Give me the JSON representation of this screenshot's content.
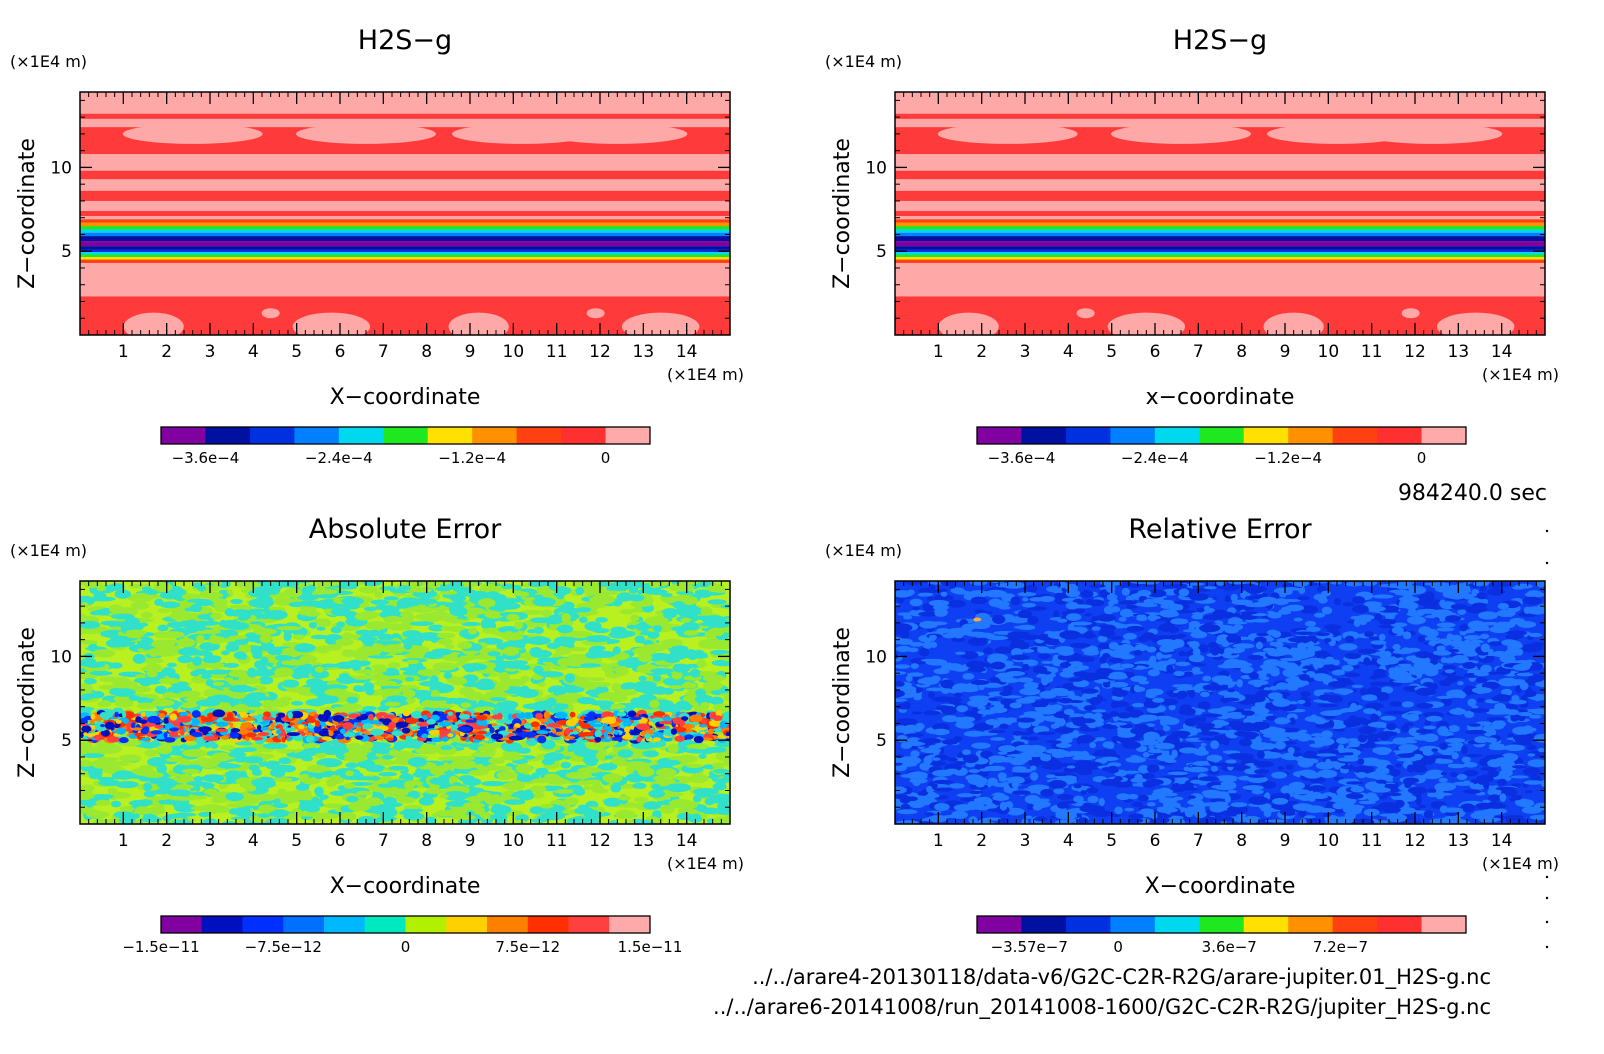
{
  "figure": {
    "time_label": "984240.0 sec",
    "sources": [
      "../../arare4-20130118/data-v6/G2C-C2R-R2G/arare-jupiter.01_H2S-g.nc",
      "../../arare6-20141008/run_20141008-1600/G2C-C2R-R2G/jupiter_H2S-g.nc"
    ]
  },
  "chart_data": [
    {
      "type": "heatmap",
      "title": "H2S−g",
      "xlabel": "X−coordinate",
      "ylabel": "Z−coordinate",
      "x_unit": "(×1E4 m)",
      "y_unit": "(×1E4 m)",
      "xlim": [
        0,
        15
      ],
      "ylim": [
        0,
        14.5
      ],
      "xticks": [
        "1",
        "2",
        "3",
        "4",
        "5",
        "6",
        "7",
        "8",
        "9",
        "10",
        "11",
        "12",
        "13",
        "14"
      ],
      "yticks": [
        "5",
        "10"
      ],
      "pattern": "bands",
      "colorbar": {
        "colors": [
          "#8000a0",
          "#0010a0",
          "#0030e0",
          "#0080ff",
          "#00d8f0",
          "#20e820",
          "#ffe000",
          "#ff9000",
          "#ff4010",
          "#ff3030",
          "#ffaaaa"
        ],
        "labels": [
          "−3.6e−4",
          "−2.4e−4",
          "−1.2e−4",
          "0"
        ]
      }
    },
    {
      "type": "heatmap",
      "title": "H2S−g",
      "xlabel": "x−coordinate",
      "ylabel": "Z−coordinate",
      "x_unit": "(×1E4 m)",
      "y_unit": "(×1E4 m)",
      "xlim": [
        0,
        15
      ],
      "ylim": [
        0,
        14.5
      ],
      "xticks": [
        "1",
        "2",
        "3",
        "4",
        "5",
        "6",
        "7",
        "8",
        "9",
        "10",
        "11",
        "12",
        "13",
        "14"
      ],
      "yticks": [
        "5",
        "10"
      ],
      "pattern": "bands",
      "colorbar": {
        "colors": [
          "#8000a0",
          "#0010a0",
          "#0030e0",
          "#0080ff",
          "#00d8f0",
          "#20e820",
          "#ffe000",
          "#ff9000",
          "#ff4010",
          "#ff3030",
          "#ffaaaa"
        ],
        "labels": [
          "−3.6e−4",
          "−2.4e−4",
          "−1.2e−4",
          "0"
        ]
      }
    },
    {
      "type": "heatmap",
      "title": "Absolute Error",
      "xlabel": "X−coordinate",
      "ylabel": "Z−coordinate",
      "x_unit": "(×1E4 m)",
      "y_unit": "(×1E4 m)",
      "xlim": [
        0,
        15
      ],
      "ylim": [
        0,
        14.5
      ],
      "xticks": [
        "1",
        "2",
        "3",
        "4",
        "5",
        "6",
        "7",
        "8",
        "9",
        "10",
        "11",
        "12",
        "13",
        "14"
      ],
      "yticks": [
        "5",
        "10"
      ],
      "pattern": "noise-green",
      "colorbar": {
        "colors": [
          "#8000a0",
          "#0010c0",
          "#0030ff",
          "#0070ff",
          "#00b8ff",
          "#00e8c0",
          "#b0f000",
          "#ffd000",
          "#ff8000",
          "#ff3000",
          "#ff4040",
          "#ffaaaa"
        ],
        "labels": [
          "−1.5e−11",
          "−7.5e−12",
          "0",
          "7.5e−12",
          "1.5e−11"
        ]
      }
    },
    {
      "type": "heatmap",
      "title": "Relative Error",
      "xlabel": "X−coordinate",
      "ylabel": "Z−coordinate",
      "x_unit": "(×1E4 m)",
      "y_unit": "(×1E4 m)",
      "xlim": [
        0,
        15
      ],
      "ylim": [
        0,
        14.5
      ],
      "xticks": [
        "1",
        "2",
        "3",
        "4",
        "5",
        "6",
        "7",
        "8",
        "9",
        "10",
        "11",
        "12",
        "13",
        "14"
      ],
      "yticks": [
        "5",
        "10"
      ],
      "pattern": "noise-blue",
      "colorbar": {
        "colors": [
          "#8000a0",
          "#0010a0",
          "#0030e0",
          "#0080ff",
          "#00d8f0",
          "#20e820",
          "#ffe000",
          "#ff9000",
          "#ff4010",
          "#ff3030",
          "#ffaaaa"
        ],
        "labels": [
          "−3.57e−7",
          "0",
          "3.6e−7",
          "7.2e−7"
        ]
      }
    }
  ]
}
